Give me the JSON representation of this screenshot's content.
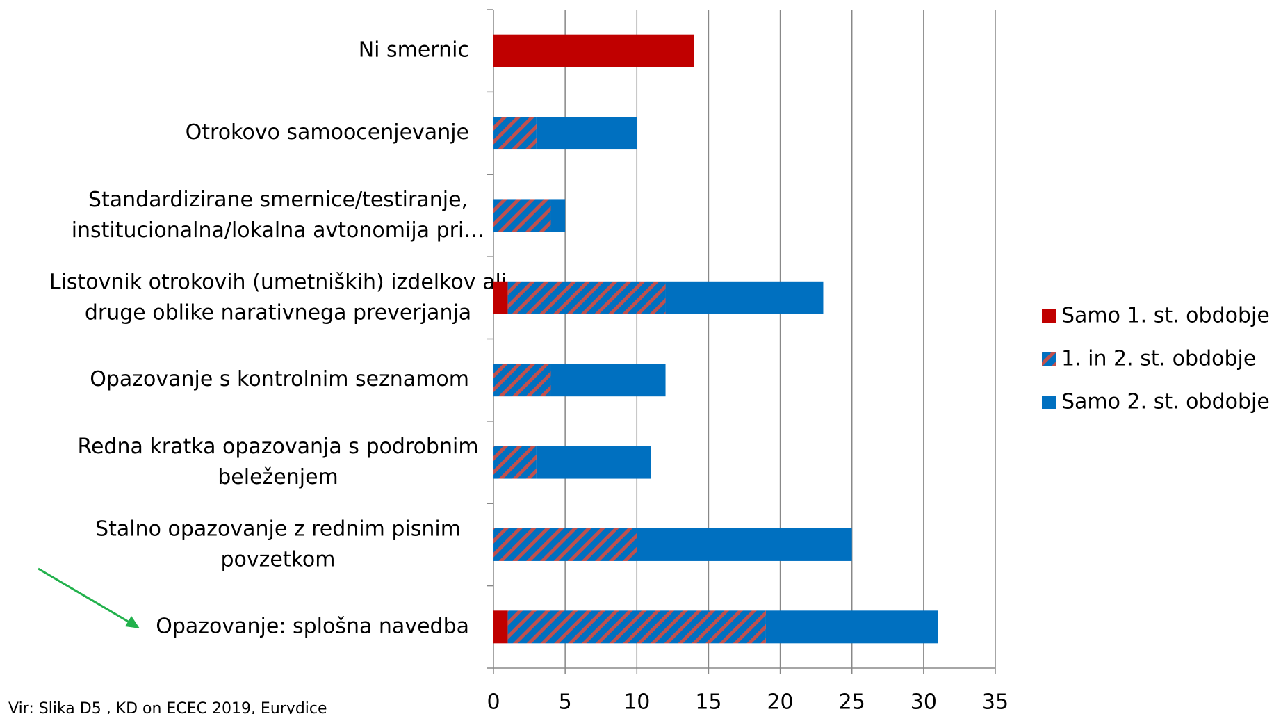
{
  "chart_data": {
    "type": "hbar-stacked",
    "categories": [
      "Ni smernic",
      "Otrokovo samoocenjevanje",
      "Standardizirane smernice/testiranje,\ninstitucionalna/lokalna avtonomija pri…",
      "Listovnik otrokovih (umetniških) izdelkov ali\ndruge oblike narativnega preverjanja",
      "Opazovanje s kontrolnim seznamom",
      "Redna kratka opazovanja s podrobnim\nbeleženjem",
      "Stalno opazovanje  z rednim pisnim\npovzetkom",
      "Opazovanje: splošna navedba"
    ],
    "series": [
      {
        "name": "Samo 1. st. obdobje",
        "color": "#c00000",
        "values": [
          14,
          0,
          0,
          1,
          0,
          0,
          0,
          1
        ]
      },
      {
        "name": "1. in 2. st. obdobje",
        "color": "#0070c0",
        "hatch": "#c0504d",
        "values": [
          0,
          3,
          4,
          11,
          4,
          3,
          10,
          18
        ]
      },
      {
        "name": "Samo 2. st. obdobje",
        "color": "#0070c0",
        "values": [
          0,
          7,
          1,
          11,
          8,
          8,
          15,
          12
        ]
      }
    ],
    "xlim": [
      0,
      35
    ],
    "xticks": [
      0,
      5,
      10,
      15,
      20,
      25,
      30,
      35
    ],
    "grid": true,
    "legend": "right",
    "source": "Vir: Slika D5 , KD on ECEC 2019, Eurydice"
  }
}
